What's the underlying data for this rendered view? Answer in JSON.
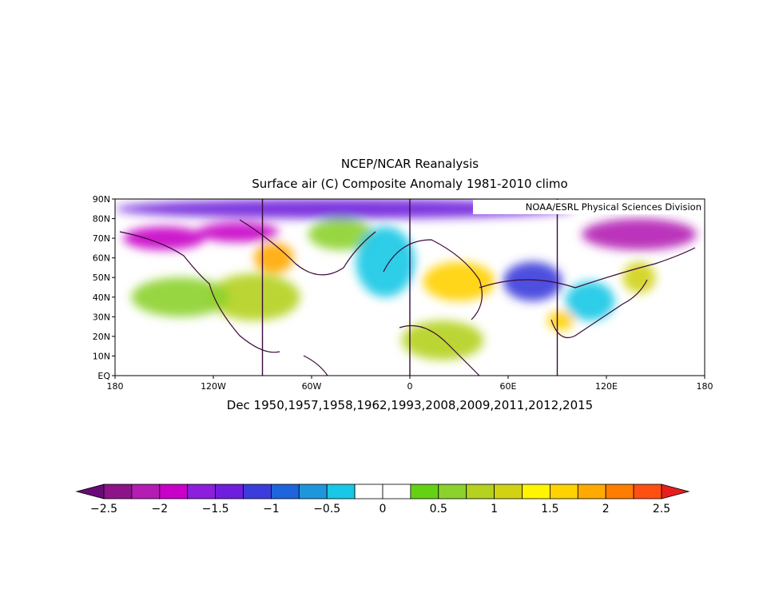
{
  "title": {
    "line1": "NCEP/NCAR Reanalysis",
    "line2": "Surface air (C) Composite Anomaly 1981-2010 climo"
  },
  "credit": "NOAA/ESRL Physical Sciences Division",
  "composite_label": "Dec 1950,1957,1958,1962,1993,2008,2009,2011,2012,2015",
  "map": {
    "lon_range": [
      -180,
      180
    ],
    "lat_range": [
      0,
      90
    ],
    "lat_ticks": [
      {
        "value": 0,
        "label": "EQ"
      },
      {
        "value": 10,
        "label": "10N"
      },
      {
        "value": 20,
        "label": "20N"
      },
      {
        "value": 30,
        "label": "30N"
      },
      {
        "value": 40,
        "label": "40N"
      },
      {
        "value": 50,
        "label": "50N"
      },
      {
        "value": 60,
        "label": "60N"
      },
      {
        "value": 70,
        "label": "70N"
      },
      {
        "value": 80,
        "label": "80N"
      },
      {
        "value": 90,
        "label": "90N"
      }
    ],
    "lon_ticks": [
      {
        "value": -180,
        "label": "180"
      },
      {
        "value": -120,
        "label": "120W"
      },
      {
        "value": -60,
        "label": "60W"
      },
      {
        "value": 0,
        "label": "0"
      },
      {
        "value": 60,
        "label": "60E"
      },
      {
        "value": 120,
        "label": "120E"
      },
      {
        "value": 180,
        "label": "180"
      }
    ],
    "grid_lons": [
      -90,
      0,
      90
    ]
  },
  "colorbar": {
    "colors": [
      "#6a0a78",
      "#8c1488",
      "#b41cb4",
      "#c800c8",
      "#8c1edc",
      "#6e1edc",
      "#3c3cdc",
      "#1e64dc",
      "#1e96dc",
      "#18c8e6",
      "#ffffff",
      "#ffffff",
      "#64d214",
      "#8cd22d",
      "#b4d21e",
      "#d2d214",
      "#fff500",
      "#ffd200",
      "#ffaa00",
      "#ff7d00",
      "#ff5014",
      "#e61e1e"
    ],
    "labels": [
      {
        "value": -2.5,
        "text": "−2.5"
      },
      {
        "value": -2,
        "text": "−2"
      },
      {
        "value": -1.5,
        "text": "−1.5"
      },
      {
        "value": -1,
        "text": "−1"
      },
      {
        "value": -0.5,
        "text": "−0.5"
      },
      {
        "value": 0,
        "text": "0"
      },
      {
        "value": 0.5,
        "text": "0.5"
      },
      {
        "value": 1,
        "text": "1"
      },
      {
        "value": 1.5,
        "text": "1.5"
      },
      {
        "value": 2,
        "text": "2"
      },
      {
        "value": 2.5,
        "text": "2.5"
      }
    ]
  },
  "anomaly_regions": [
    {
      "region": "arctic-cold-band",
      "lon": -40,
      "lat": 85,
      "rx": 140,
      "ry": 5,
      "value": -1.5
    },
    {
      "region": "alaska-cold",
      "lon": -150,
      "lat": 70,
      "rx": 25,
      "ry": 6,
      "value": -1.8
    },
    {
      "region": "canada-arctic-cold",
      "lon": -105,
      "lat": 73,
      "rx": 25,
      "ry": 5,
      "value": -2
    },
    {
      "region": "greenland-warm",
      "lon": -42,
      "lat": 72,
      "rx": 20,
      "ry": 8,
      "value": 0.6
    },
    {
      "region": "hudson-bay-warm",
      "lon": -83,
      "lat": 60,
      "rx": 12,
      "ry": 8,
      "value": 1.8
    },
    {
      "region": "usa-warm",
      "lon": -95,
      "lat": 40,
      "rx": 28,
      "ry": 12,
      "value": 0.8
    },
    {
      "region": "pacific-warm",
      "lon": -140,
      "lat": 40,
      "rx": 30,
      "ry": 10,
      "value": 0.5
    },
    {
      "region": "north-atlantic-cold",
      "lon": -15,
      "lat": 58,
      "rx": 18,
      "ry": 18,
      "value": -0.5
    },
    {
      "region": "europe-warm",
      "lon": 30,
      "lat": 48,
      "rx": 22,
      "ry": 10,
      "value": 1.6
    },
    {
      "region": "central-asia-cold",
      "lon": 75,
      "lat": 48,
      "rx": 18,
      "ry": 10,
      "value": -1.2
    },
    {
      "region": "east-siberia-cold",
      "lon": 140,
      "lat": 72,
      "rx": 35,
      "ry": 8,
      "value": -2.2
    },
    {
      "region": "north-africa-warm",
      "lon": 20,
      "lat": 18,
      "rx": 25,
      "ry": 10,
      "value": 0.8
    },
    {
      "region": "china-cold",
      "lon": 110,
      "lat": 38,
      "rx": 15,
      "ry": 10,
      "value": -0.5
    },
    {
      "region": "japan-warm",
      "lon": 140,
      "lat": 50,
      "rx": 10,
      "ry": 8,
      "value": 1.2
    },
    {
      "region": "india-warm",
      "lon": 92,
      "lat": 28,
      "rx": 8,
      "ry": 5,
      "value": 1.5
    }
  ]
}
